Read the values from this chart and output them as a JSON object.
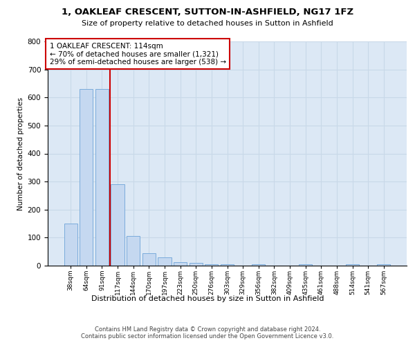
{
  "title1": "1, OAKLEAF CRESCENT, SUTTON-IN-ASHFIELD, NG17 1FZ",
  "title2": "Size of property relative to detached houses in Sutton in Ashfield",
  "xlabel": "Distribution of detached houses by size in Sutton in Ashfield",
  "ylabel": "Number of detached properties",
  "footnote": "Contains HM Land Registry data © Crown copyright and database right 2024.\nContains public sector information licensed under the Open Government Licence v3.0.",
  "categories": [
    "38sqm",
    "64sqm",
    "91sqm",
    "117sqm",
    "144sqm",
    "170sqm",
    "197sqm",
    "223sqm",
    "250sqm",
    "276sqm",
    "303sqm",
    "329sqm",
    "356sqm",
    "382sqm",
    "409sqm",
    "435sqm",
    "461sqm",
    "488sqm",
    "514sqm",
    "541sqm",
    "567sqm"
  ],
  "values": [
    150,
    630,
    630,
    290,
    105,
    45,
    30,
    12,
    10,
    5,
    5,
    0,
    5,
    0,
    0,
    5,
    0,
    0,
    5,
    0,
    5
  ],
  "bar_color": "#c5d8f0",
  "bar_edge_color": "#7aabdb",
  "grid_color": "#c8d8e8",
  "background_color": "#dce8f5",
  "annotation_box_text": "1 OAKLEAF CRESCENT: 114sqm\n← 70% of detached houses are smaller (1,321)\n29% of semi-detached houses are larger (538) →",
  "annotation_box_color": "#ffffff",
  "annotation_box_edge_color": "#cc0000",
  "vline_color": "#cc0000",
  "vline_xidx": 3,
  "ylim": [
    0,
    800
  ],
  "yticks": [
    0,
    100,
    200,
    300,
    400,
    500,
    600,
    700,
    800
  ],
  "title1_fontsize": 9.5,
  "title2_fontsize": 8.0,
  "xlabel_fontsize": 8.0,
  "ylabel_fontsize": 7.5,
  "footnote_fontsize": 6.0,
  "tick_fontsize": 7.5,
  "annotation_fontsize": 7.5
}
